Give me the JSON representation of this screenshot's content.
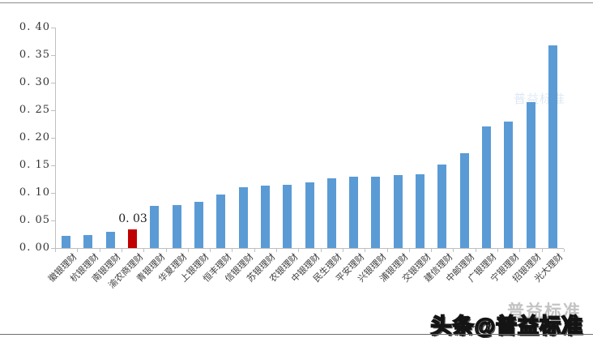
{
  "page": {
    "background": "#ffffff",
    "border_color": "#8c8c8c"
  },
  "chart_data": {
    "type": "bar",
    "title": "",
    "xlabel": "",
    "ylabel": "",
    "categories": [
      "徽银理财",
      "杭银理财",
      "南银理财",
      "渝农商理财",
      "青银理财",
      "华夏理财",
      "上银理财",
      "恒丰理财",
      "信银理财",
      "苏银理财",
      "农银理财",
      "中银理财",
      "民生理财",
      "平安理财",
      "兴银理财",
      "浦银理财",
      "交银理财",
      "建信理财",
      "中邮理财",
      "广银理财",
      "宁银理财",
      "招银理财",
      "光大理财"
    ],
    "values": [
      0.022,
      0.023,
      0.029,
      0.034,
      0.077,
      0.078,
      0.084,
      0.097,
      0.11,
      0.113,
      0.115,
      0.119,
      0.127,
      0.13,
      0.13,
      0.133,
      0.134,
      0.152,
      0.172,
      0.221,
      0.23,
      0.265,
      0.367
    ],
    "highlight_index": 3,
    "highlight_label": "0. 03",
    "bar_color": "#5b9bd5",
    "highlight_color": "#c00000",
    "ylim": [
      0,
      0.4
    ],
    "ytick_step": 0.05,
    "ytick_labels": [
      "0. 00",
      "0. 05",
      "0. 10",
      "0. 15",
      "0. 20",
      "0. 25",
      "0. 30",
      "0. 35",
      "0. 40"
    ],
    "grid": false,
    "legend": false,
    "axis_color": "#bfbfbf",
    "tick_label_color": "#333333",
    "category_label_rotation_deg": -45
  },
  "watermark": {
    "chart_text": "普益标准"
  },
  "logo": {
    "ghost_text": "普益标准",
    "text": "头条@普益标准"
  }
}
